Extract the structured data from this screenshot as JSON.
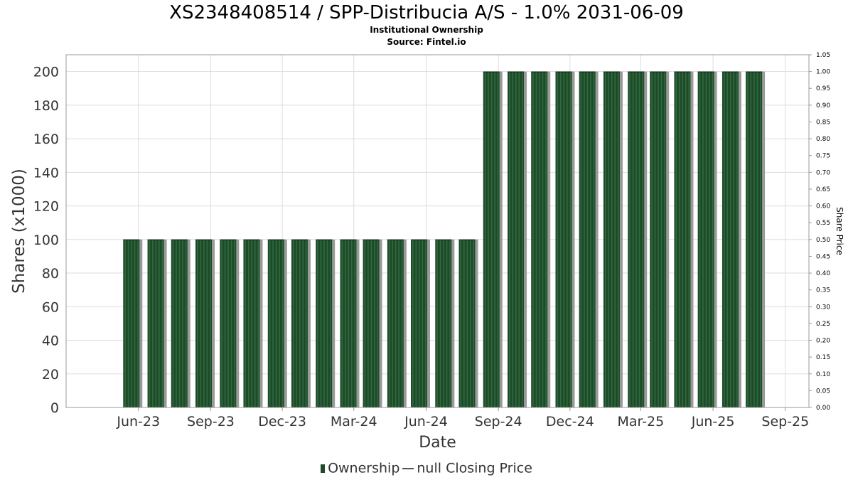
{
  "header": {
    "title": "XS2348408514 / SPP-Distribucia A/S - 1.0% 2031-06-09",
    "subtitle": "Institutional Ownership",
    "source": "Source: Fintel.io"
  },
  "legend": {
    "ownership_label": "Ownership",
    "price_label": "null Closing Price"
  },
  "colors": {
    "bar": "#1e4a2a",
    "bar_stripe": "#2f6b3d",
    "bar_shadow": "#9a9a9a",
    "grid": "#dddddd"
  },
  "chart_data": {
    "type": "bar",
    "title": "XS2348408514 / SPP-Distribucia A/S - 1.0% 2031-06-09",
    "subtitle": "Institutional Ownership",
    "xlabel": "Date",
    "ylabel": "Shares (x1000)",
    "y2label": "Share Price",
    "ylim": [
      0,
      210
    ],
    "y_ticks": [
      0,
      20,
      40,
      60,
      80,
      100,
      120,
      140,
      160,
      180,
      200
    ],
    "y2lim": [
      0,
      1.05
    ],
    "y2_ticks": [
      "0.00",
      "0.05",
      "0.10",
      "0.15",
      "0.20",
      "0.25",
      "0.30",
      "0.35",
      "0.40",
      "0.45",
      "0.50",
      "0.55",
      "0.60",
      "0.65",
      "0.70",
      "0.75",
      "0.80",
      "0.85",
      "0.90",
      "0.95",
      "1.00",
      "1.05"
    ],
    "x_ticks": [
      "Jun-23",
      "Sep-23",
      "Dec-23",
      "Mar-24",
      "Jun-24",
      "Sep-24",
      "Dec-24",
      "Mar-25",
      "Jun-25",
      "Sep-25"
    ],
    "x_tick_dates": [
      "2023-06-01",
      "2023-09-01",
      "2023-12-01",
      "2024-03-01",
      "2024-06-01",
      "2024-09-01",
      "2024-12-01",
      "2025-03-01",
      "2025-06-01",
      "2025-09-01"
    ],
    "x_range": [
      "2023-03-01",
      "2025-10-01"
    ],
    "grid": true,
    "legend_position": "bottom",
    "series": [
      {
        "name": "Ownership",
        "dates": [
          "2023-05-23",
          "2023-06-23",
          "2023-07-23",
          "2023-08-23",
          "2023-09-23",
          "2023-10-23",
          "2023-11-23",
          "2023-12-23",
          "2024-01-23",
          "2024-02-23",
          "2024-03-23",
          "2024-04-23",
          "2024-05-23",
          "2024-06-23",
          "2024-07-23",
          "2024-08-23",
          "2024-09-23",
          "2024-10-23",
          "2024-11-23",
          "2024-12-23",
          "2025-01-23",
          "2025-02-23",
          "2025-03-23",
          "2025-04-23",
          "2025-05-23",
          "2025-06-23",
          "2025-07-23"
        ],
        "values": [
          100,
          100,
          100,
          100,
          100,
          100,
          100,
          100,
          100,
          100,
          100,
          100,
          100,
          100,
          100,
          200,
          200,
          200,
          200,
          200,
          200,
          200,
          200,
          200,
          200,
          200,
          200
        ]
      }
    ]
  }
}
